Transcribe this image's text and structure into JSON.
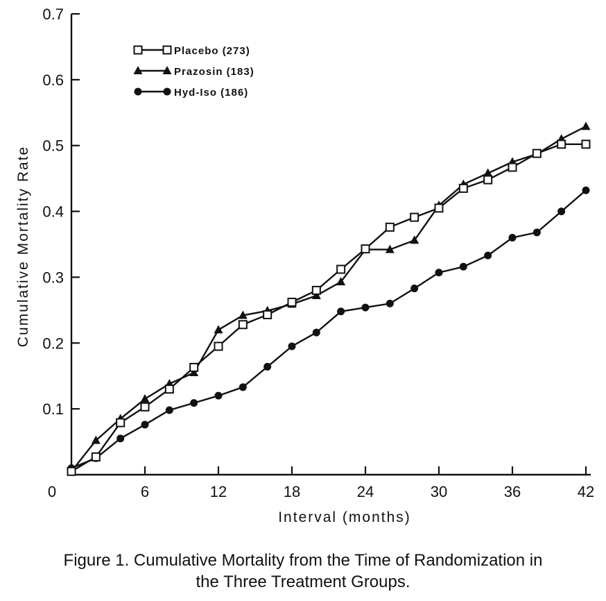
{
  "caption": {
    "line1": "Figure 1. Cumulative Mortality from the Time of Randomization in",
    "line2": "the Three Treatment Groups."
  },
  "chart_data": {
    "type": "line",
    "title": "",
    "xlabel": "Interval (months)",
    "ylabel": "Cumulative Mortality Rate",
    "xlim": [
      0,
      42
    ],
    "ylim": [
      0,
      0.7
    ],
    "x_ticks": [
      0,
      6,
      12,
      18,
      24,
      30,
      36,
      42
    ],
    "x_tick_labels": [
      "0",
      "6",
      "12",
      "18",
      "24",
      "30",
      "36",
      "42"
    ],
    "y_ticks": [
      0.1,
      0.2,
      0.3,
      0.4,
      0.5,
      0.6,
      0.7
    ],
    "y_tick_labels": [
      "0.1",
      "0.2",
      "0.3",
      "0.4",
      "0.5",
      "0.6",
      "0.7"
    ],
    "grid": false,
    "legend_position": "top-left",
    "x": [
      0,
      2,
      4,
      6,
      8,
      10,
      12,
      14,
      16,
      18,
      20,
      22,
      24,
      26,
      28,
      30,
      32,
      34,
      36,
      38,
      40,
      42
    ],
    "series": [
      {
        "name": "Placebo (273)",
        "marker": "open-square",
        "values": [
          0.005,
          0.027,
          0.079,
          0.103,
          0.13,
          0.163,
          0.195,
          0.228,
          0.243,
          0.262,
          0.28,
          0.312,
          0.343,
          0.376,
          0.391,
          0.405,
          0.435,
          0.448,
          0.467,
          0.488,
          0.502,
          0.502
        ]
      },
      {
        "name": "Prazosin (183)",
        "marker": "filled-triangle",
        "values": [
          0.005,
          0.052,
          0.085,
          0.115,
          0.138,
          0.155,
          0.22,
          0.242,
          0.249,
          0.259,
          0.272,
          0.293,
          0.342,
          0.342,
          0.356,
          0.409,
          0.441,
          0.458,
          0.475,
          0.487,
          0.51,
          0.529
        ]
      },
      {
        "name": "Hyd-Iso (186)",
        "marker": "filled-circle",
        "values": [
          0.01,
          0.025,
          0.055,
          0.076,
          0.098,
          0.109,
          0.12,
          0.133,
          0.164,
          0.195,
          0.216,
          0.248,
          0.254,
          0.26,
          0.283,
          0.307,
          0.316,
          0.333,
          0.36,
          0.368,
          0.4,
          0.432
        ]
      }
    ]
  }
}
